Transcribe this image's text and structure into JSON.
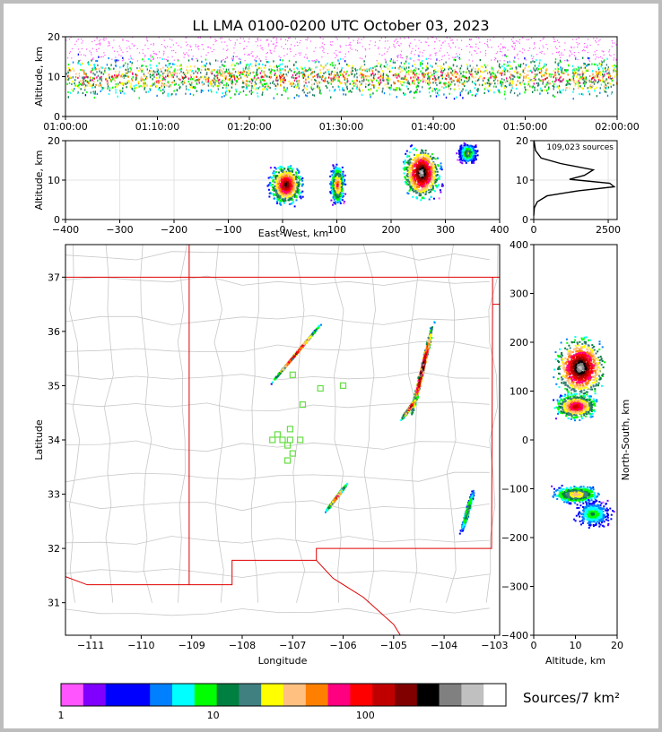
{
  "chart_data": [
    {
      "type": "heatmap",
      "panel": "altitude-time",
      "title": "LL LMA 0100-0200 UTC October 03, 2023",
      "ylabel": "Altitude, km",
      "ylim": [
        0,
        20
      ],
      "yticks": [
        "0",
        "10",
        "20"
      ],
      "xticks": [
        "01:00:00",
        "01:10:00",
        "01:20:00",
        "01:30:00",
        "01:40:00",
        "01:50:00",
        "02:00:00"
      ],
      "description_bands": [
        {
          "from_alt": 2,
          "to_alt": 20,
          "note": "continuous sources throughout hour, densest 6-14 km"
        }
      ]
    },
    {
      "type": "heatmap",
      "panel": "east-west-altitude",
      "xlabel": "East-West, km",
      "ylabel": "Altitude, km",
      "xlim": [
        -400,
        400
      ],
      "ylim": [
        0,
        20
      ],
      "xticks": [
        "−400",
        "−300",
        "−200",
        "−100",
        "0",
        "100",
        "200",
        "300",
        "400"
      ],
      "yticks": [
        "0",
        "10",
        "20"
      ],
      "clusters": [
        {
          "x_center": 5,
          "x_halfwidth": 35,
          "alt_center": 9,
          "alt_halfspread": 6,
          "peak": 0.9
        },
        {
          "x_center": 100,
          "x_halfwidth": 15,
          "alt_center": 9,
          "alt_halfspread": 6,
          "peak": 0.7
        },
        {
          "x_center": 255,
          "x_halfwidth": 40,
          "alt_center": 12,
          "alt_halfspread": 8,
          "peak": 1.0
        },
        {
          "x_center": 340,
          "x_halfwidth": 20,
          "alt_center": 17,
          "alt_halfspread": 3,
          "peak": 0.5
        }
      ]
    },
    {
      "type": "line",
      "panel": "altitude-histogram",
      "annotation": "109,023 sources",
      "xlim": [
        0,
        2800
      ],
      "ylim": [
        0,
        20
      ],
      "xticks": [
        "0",
        "2500"
      ],
      "yticks": [
        "0",
        "10",
        "20"
      ],
      "x": [
        0,
        20,
        120,
        450,
        1500,
        2700,
        2550,
        1200,
        1700,
        2000,
        900,
        250,
        60,
        10
      ],
      "y": [
        1,
        3,
        4.5,
        6,
        7.3,
        8.3,
        9.2,
        10.2,
        11.2,
        12.6,
        14.2,
        15.6,
        17.5,
        20
      ]
    },
    {
      "type": "heatmap",
      "panel": "plan-view",
      "xlabel": "Longitude",
      "ylabel": "Latitude",
      "xlim": [
        -111.5,
        -102.9
      ],
      "ylim": [
        30.4,
        37.6
      ],
      "xticks": [
        "−111",
        "−110",
        "−109",
        "−108",
        "−107",
        "−106",
        "−105",
        "−104",
        "−103"
      ],
      "yticks": [
        "31",
        "32",
        "33",
        "34",
        "35",
        "36",
        "37"
      ],
      "clusters": [
        {
          "lon": -106.95,
          "lat": 35.6,
          "elong_dlon": 0.45,
          "elong_dlat": 0.5,
          "peak": 0.85
        },
        {
          "lon": -104.45,
          "lat": 35.3,
          "elong_dlon": 0.2,
          "elong_dlat": 0.8,
          "peak": 1.0
        },
        {
          "lon": -104.7,
          "lat": 34.6,
          "elong_dlon": 0.15,
          "elong_dlat": 0.2,
          "peak": 0.9
        },
        {
          "lon": -106.15,
          "lat": 32.95,
          "elong_dlon": 0.2,
          "elong_dlat": 0.25,
          "peak": 0.75
        },
        {
          "lon": -103.55,
          "lat": 32.7,
          "elong_dlon": 0.12,
          "elong_dlat": 0.4,
          "peak": 0.5
        }
      ],
      "stations": [
        {
          "lon": -107.0,
          "lat": 35.2
        },
        {
          "lon": -106.45,
          "lat": 34.95
        },
        {
          "lon": -106.0,
          "lat": 35.0
        },
        {
          "lon": -106.8,
          "lat": 34.65
        },
        {
          "lon": -107.05,
          "lat": 34.2
        },
        {
          "lon": -107.3,
          "lat": 34.1
        },
        {
          "lon": -107.4,
          "lat": 34.0
        },
        {
          "lon": -107.2,
          "lat": 34.0
        },
        {
          "lon": -107.05,
          "lat": 34.0
        },
        {
          "lon": -106.85,
          "lat": 34.0
        },
        {
          "lon": -107.1,
          "lat": 33.9
        },
        {
          "lon": -107.0,
          "lat": 33.75
        },
        {
          "lon": -107.1,
          "lat": 33.62
        }
      ]
    },
    {
      "type": "heatmap",
      "panel": "altitude-north-south",
      "xlabel": "Altitude, km",
      "ylabel": "North-South, km",
      "xlim": [
        0,
        20
      ],
      "ylim": [
        -400,
        400
      ],
      "xticks": [
        "0",
        "10",
        "20"
      ],
      "yticks": [
        "−400",
        "−300",
        "−200",
        "−100",
        "0",
        "100",
        "200",
        "300",
        "400"
      ],
      "clusters": [
        {
          "alt": 11,
          "ns": 150,
          "alt_spread": 8,
          "ns_spread": 80,
          "peak": 1.0
        },
        {
          "alt": 10,
          "ns": 70,
          "alt_spread": 7,
          "ns_spread": 35,
          "peak": 0.8
        },
        {
          "alt": 10,
          "ns": -110,
          "alt_spread": 8,
          "ns_spread": 25,
          "peak": 0.6
        },
        {
          "alt": 14,
          "ns": -150,
          "alt_spread": 6,
          "ns_spread": 40,
          "peak": 0.4
        }
      ]
    }
  ],
  "colorbar": {
    "label": "Sources/7 km²",
    "ticks": [
      "1",
      "10",
      "100"
    ],
    "colors": [
      "#ff55ff",
      "#8000ff",
      "#0000ff",
      "#0000ff",
      "#0080ff",
      "#00ffff",
      "#00ff00",
      "#008040",
      "#408080",
      "#ffff00",
      "#ffc080",
      "#ff8000",
      "#ff0080",
      "#ff0000",
      "#c00000",
      "#800000",
      "#000000",
      "#808080",
      "#c0c0c0",
      "#ffffff"
    ]
  },
  "colors": {
    "state_border": "#e00000",
    "county_lines": "#c8c8c8",
    "station_marker": "#66dd44"
  }
}
